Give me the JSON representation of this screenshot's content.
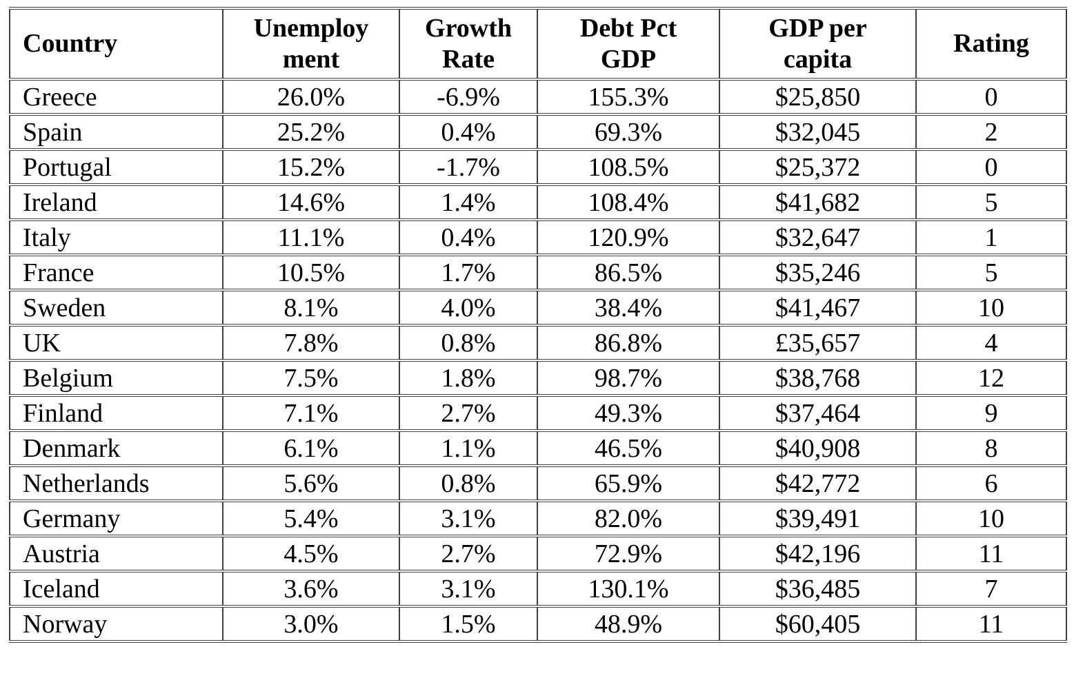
{
  "page": {
    "background_color": "#ffffff",
    "text_color": "#000000",
    "border_color": "#3f3f3f"
  },
  "chart_data": {
    "type": "table",
    "title": "",
    "columns": [
      "Country",
      "Unemploy\nment",
      "Growth\nRate",
      "Debt Pct\nGDP",
      "GDP per\ncapita",
      "Rating"
    ],
    "rows": [
      [
        "Greece",
        "26.0%",
        "-6.9%",
        "155.3%",
        "$25,850",
        "0"
      ],
      [
        "Spain",
        "25.2%",
        "0.4%",
        "69.3%",
        "$32,045",
        "2"
      ],
      [
        "Portugal",
        "15.2%",
        "-1.7%",
        "108.5%",
        "$25,372",
        "0"
      ],
      [
        "Ireland",
        "14.6%",
        "1.4%",
        "108.4%",
        "$41,682",
        "5"
      ],
      [
        "Italy",
        "11.1%",
        "0.4%",
        "120.9%",
        "$32,647",
        "1"
      ],
      [
        "France",
        "10.5%",
        "1.7%",
        "86.5%",
        "$35,246",
        "5"
      ],
      [
        "Sweden",
        "8.1%",
        "4.0%",
        "38.4%",
        "$41,467",
        "10"
      ],
      [
        "UK",
        "7.8%",
        "0.8%",
        "86.8%",
        "£35,657",
        "4"
      ],
      [
        "Belgium",
        "7.5%",
        "1.8%",
        "98.7%",
        "$38,768",
        "12"
      ],
      [
        "Finland",
        "7.1%",
        "2.7%",
        "49.3%",
        "$37,464",
        "9"
      ],
      [
        "Denmark",
        "6.1%",
        "1.1%",
        "46.5%",
        "$40,908",
        "8"
      ],
      [
        "Netherlands",
        "5.6%",
        "0.8%",
        "65.9%",
        "$42,772",
        "6"
      ],
      [
        "Germany",
        "5.4%",
        "3.1%",
        "82.0%",
        "$39,491",
        "10"
      ],
      [
        "Austria",
        "4.5%",
        "2.7%",
        "72.9%",
        "$42,196",
        "11"
      ],
      [
        "Iceland",
        "3.6%",
        "3.1%",
        "130.1%",
        "$36,485",
        "7"
      ],
      [
        "Norway",
        "3.0%",
        "1.5%",
        "48.9%",
        "$60,405",
        "11"
      ]
    ]
  }
}
